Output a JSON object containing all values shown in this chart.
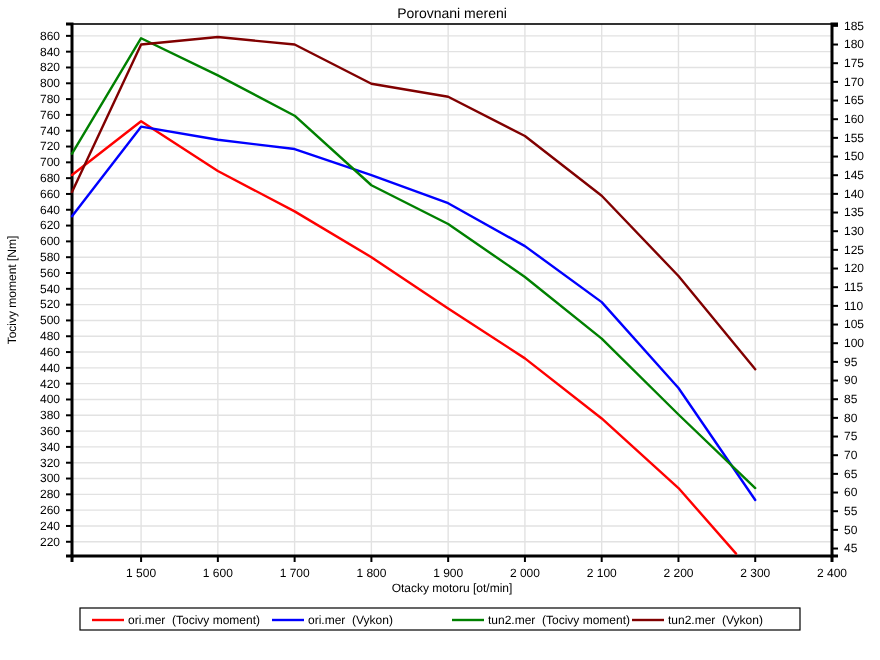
{
  "chart_data": {
    "type": "line",
    "title": "Porovnani mereni",
    "xlabel": "Otacky motoru [ot/min]",
    "ylabel": "Tocivy moment [Nm]",
    "xlim": [
      1410,
      2400
    ],
    "xticks": [
      {
        "value": 1500,
        "label": "1 500"
      },
      {
        "value": 1600,
        "label": "1 600"
      },
      {
        "value": 1700,
        "label": "1 700"
      },
      {
        "value": 1800,
        "label": "1 800"
      },
      {
        "value": 1900,
        "label": "1 900"
      },
      {
        "value": 2000,
        "label": "2 000"
      },
      {
        "value": 2100,
        "label": "2 100"
      },
      {
        "value": 2200,
        "label": "2 200"
      },
      {
        "value": 2300,
        "label": "2 300"
      },
      {
        "value": 2400,
        "label": "2 400"
      }
    ],
    "ylim": [
      202,
      875
    ],
    "yticks": [
      220,
      240,
      260,
      280,
      300,
      320,
      340,
      360,
      380,
      400,
      420,
      440,
      460,
      480,
      500,
      520,
      540,
      560,
      580,
      600,
      620,
      640,
      660,
      680,
      700,
      720,
      740,
      760,
      780,
      800,
      820,
      840,
      860
    ],
    "y2lim": [
      43,
      185.5
    ],
    "y2ticks": [
      45,
      50,
      55,
      60,
      65,
      70,
      75,
      80,
      85,
      90,
      95,
      100,
      105,
      110,
      115,
      120,
      125,
      130,
      135,
      140,
      145,
      150,
      155,
      160,
      165,
      170,
      175,
      180,
      185
    ],
    "grid": true,
    "legend": "bottom",
    "line_style": "solid",
    "series": [
      {
        "name": "ori.mer  (Tocivy moment)",
        "color": "#ff0000",
        "x": [
          1410,
          1500,
          1600,
          1700,
          1800,
          1900,
          2000,
          2100,
          2200,
          2275
        ],
        "values": [
          684,
          752,
          689,
          638,
          580,
          515,
          452,
          376,
          288,
          205
        ]
      },
      {
        "name": "ori.mer  (Vykon)",
        "color": "#0000ff",
        "axis": "y2",
        "x": [
          1410,
          1500,
          1600,
          1700,
          1800,
          1900,
          2000,
          2100,
          2200,
          2300
        ],
        "values": [
          134,
          158,
          154.5,
          152,
          145,
          137.5,
          126,
          111,
          88,
          58
        ]
      },
      {
        "name": "tun2.mer  (Tocivy moment)",
        "color": "#008000",
        "x": [
          1410,
          1500,
          1600,
          1700,
          1800,
          1900,
          2000,
          2100,
          2200,
          2300
        ],
        "values": [
          711,
          857,
          810,
          759,
          671,
          622,
          555,
          477,
          381,
          288
        ]
      },
      {
        "name": "tun2.mer  (Vykon)",
        "color": "#800000",
        "axis": "y2",
        "x": [
          1410,
          1500,
          1600,
          1700,
          1800,
          1900,
          2000,
          2100,
          2200,
          2300
        ],
        "values": [
          140.5,
          180,
          182,
          180,
          169.5,
          166,
          155.5,
          139.5,
          118,
          93
        ]
      }
    ]
  }
}
